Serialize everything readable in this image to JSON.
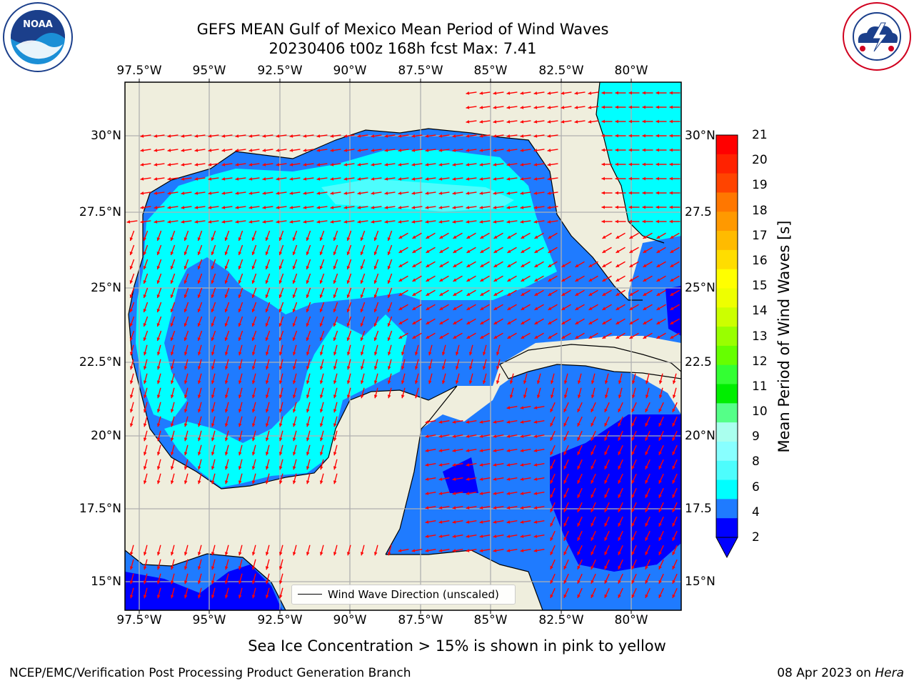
{
  "header": {
    "title_line1": "GEFS MEAN Gulf of Mexico Mean Period of Wind Waves",
    "title_line2": "20230406 t00z 168h fcst   Max: 7.41"
  },
  "logos": {
    "left": {
      "text": "NOAA",
      "ring_text": "NATIONAL OCEANIC AND ATMOSPHERIC ADMINISTRATION · U.S. DEPARTMENT OF COMMERCE"
    },
    "right": {
      "ring_text": "NATIONAL WEATHER SERVICE"
    }
  },
  "map": {
    "lon_ticks": [
      "97.5°W",
      "95°W",
      "92.5°W",
      "90°W",
      "87.5°W",
      "85°W",
      "82.5°W",
      "80°W"
    ],
    "lat_ticks": [
      "30°N",
      "27.5°N",
      "25°N",
      "22.5°N",
      "20°N",
      "17.5°N",
      "15°N"
    ],
    "lat_ticks_right": [
      "30°N",
      "27.5",
      "25°N",
      "22.5",
      "20°N",
      "17.5",
      "15°N"
    ],
    "lon_values": [
      -97.5,
      -95,
      -92.5,
      -90,
      -87.5,
      -85,
      -82.5,
      -80
    ],
    "lat_values": [
      30,
      27.5,
      25,
      22.5,
      20,
      17.5,
      15
    ],
    "extent": {
      "lon_min": -98,
      "lon_max": -78.25,
      "lat_min": 14,
      "lat_max": 31.7
    },
    "legend_label": "Wind Wave Direction (unscaled)",
    "colors": {
      "land": "#efeedd",
      "ocean_2_4": "#1f7bff",
      "ocean_4_6": "#00ffff",
      "ocean_6_8": "#4dfdfd",
      "ocean_lt_2": "#0000ff",
      "vector": "#ff0000",
      "grid": "#b0b0b0"
    }
  },
  "colorbar": {
    "title": "Mean Period of Wind Waves [s]",
    "labels": [
      "21",
      "20",
      "19",
      "18",
      "17",
      "16",
      "15",
      "14",
      "13",
      "12",
      "11",
      "10",
      "9",
      "8",
      "6",
      "4",
      "2"
    ],
    "colors": [
      "#ff0000",
      "#ff2200",
      "#ff4400",
      "#ff7700",
      "#ff9900",
      "#ffbb00",
      "#ffdd00",
      "#ffff00",
      "#eeff00",
      "#ccff00",
      "#99ff00",
      "#66ff00",
      "#33ff33",
      "#00ee00",
      "#55ff88",
      "#aaffee",
      "#88ffff",
      "#4dfdfd",
      "#00ffff",
      "#1f7bff",
      "#0000ff"
    ]
  },
  "notes": {
    "sea_ice": "Sea Ice Concentration > 15% is shown in pink to yellow",
    "footer_left": "NCEP/EMC/Verification Post Processing Product Generation Branch",
    "footer_right_prefix": "08 Apr 2023 on ",
    "footer_right_host": "Hera"
  }
}
